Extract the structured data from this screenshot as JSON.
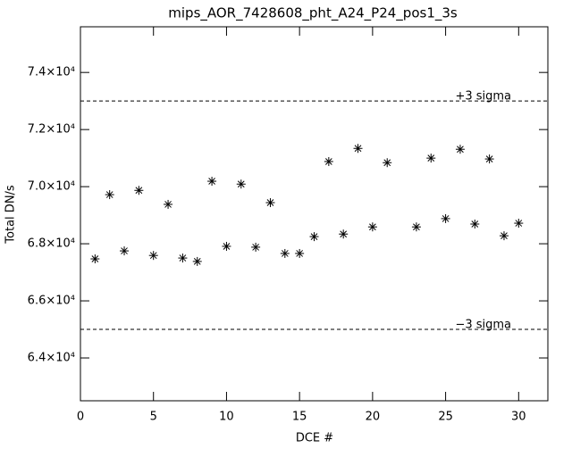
{
  "chart_data": {
    "type": "scatter",
    "title": "mips_AOR_7428608_pht_A24_P24_pos1_3s",
    "x_label": "DCE #",
    "y_label": "Total DN/s",
    "color": "#000000",
    "marker": "asterisk",
    "xlim": [
      0,
      32
    ],
    "xticks": [
      0,
      5,
      10,
      15,
      20,
      25,
      30
    ],
    "ylim": [
      62500,
      75600
    ],
    "yticks": [
      {
        "value": 64000,
        "label": "6.4×10⁴"
      },
      {
        "value": 66000,
        "label": "6.6×10⁴"
      },
      {
        "value": 68000,
        "label": "6.8×10⁴"
      },
      {
        "value": 70000,
        "label": "7.0×10⁴"
      },
      {
        "value": 72000,
        "label": "7.2×10⁴"
      },
      {
        "value": 74000,
        "label": "7.4×10⁴"
      }
    ],
    "reference_lines": [
      {
        "value": 73000,
        "label": "+3 sigma"
      },
      {
        "value": 65000,
        "label": "−3 sigma"
      }
    ],
    "x": [
      1,
      2,
      3,
      4,
      5,
      6,
      7,
      8,
      9,
      10,
      11,
      12,
      13,
      14,
      15,
      16,
      17,
      18,
      19,
      20,
      21,
      23,
      24,
      25,
      26,
      27,
      28,
      29,
      30
    ],
    "values": [
      67470,
      69720,
      67750,
      69870,
      67590,
      69380,
      67500,
      67380,
      70190,
      67910,
      70090,
      67880,
      69440,
      67660,
      67660,
      68250,
      70880,
      68340,
      71340,
      68590,
      70840,
      68590,
      71000,
      68880,
      71310,
      68690,
      70970,
      68280,
      68720
    ]
  }
}
